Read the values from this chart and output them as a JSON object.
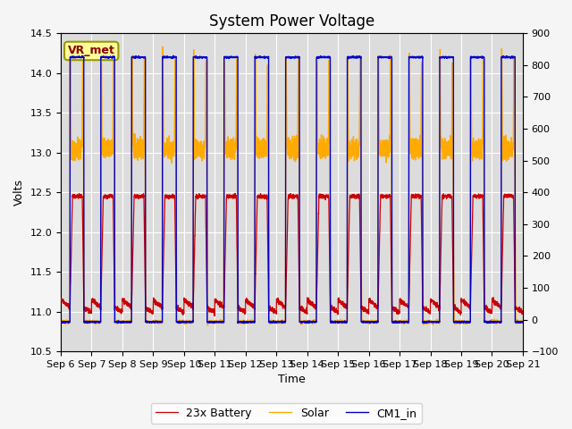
{
  "title": "System Power Voltage",
  "xlabel": "Time",
  "ylabel": "Volts",
  "ylim_left": [
    10.5,
    14.5
  ],
  "ylim_right": [
    -100,
    900
  ],
  "n_days": 15,
  "battery_color": "#cc0000",
  "solar_color": "#ffaa00",
  "cm1_color": "#0000cc",
  "legend_labels": [
    "23x Battery",
    "Solar",
    "CM1_in"
  ],
  "x_tick_labels": [
    "Sep 6",
    "Sep 7",
    "Sep 8",
    "Sep 9",
    "Sep 10",
    "Sep 11",
    "Sep 12",
    "Sep 13",
    "Sep 14",
    "Sep 15",
    "Sep 16",
    "Sep 17",
    "Sep 18",
    "Sep 19",
    "Sep 20",
    "Sep 21"
  ],
  "annotation_text": "VR_met",
  "axes_bg_color": "#dcdcdc",
  "fig_bg_color": "#f5f5f5",
  "grid_color": "white",
  "title_fontsize": 12,
  "label_fontsize": 9,
  "tick_fontsize": 8,
  "linewidth_bat": 0.9,
  "linewidth_sol": 1.0,
  "linewidth_cm1": 1.0
}
